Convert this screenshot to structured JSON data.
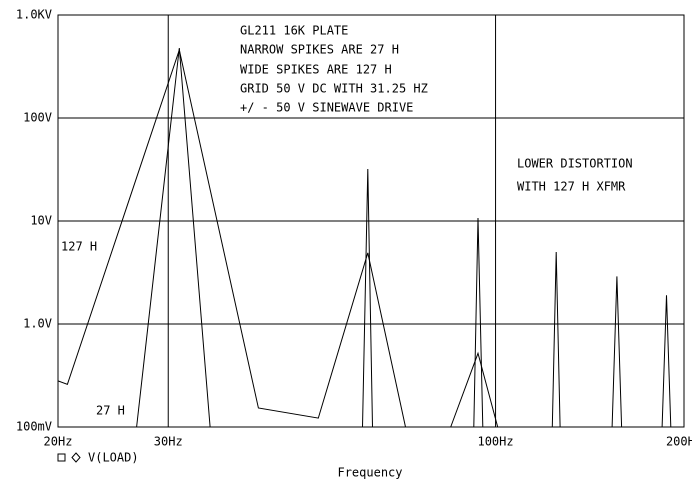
{
  "chart_data": {
    "type": "line",
    "xlabel": "Frequency",
    "legend_label": "V(LOAD)",
    "xscale": "log",
    "yscale": "log",
    "grid": true,
    "xlim": [
      20,
      200
    ],
    "ylim": [
      0.1,
      1000
    ],
    "xticks": [
      {
        "value": 20,
        "label": "20Hz"
      },
      {
        "value": 30,
        "label": "30Hz"
      },
      {
        "value": 100,
        "label": "100Hz"
      },
      {
        "value": 200,
        "label": "200Hz"
      }
    ],
    "yticks": [
      {
        "value": 0.1,
        "label": "100mV"
      },
      {
        "value": 1,
        "label": "1.0V"
      },
      {
        "value": 10,
        "label": "10V"
      },
      {
        "value": 100,
        "label": "100V"
      },
      {
        "value": 1000,
        "label": "1.0KV"
      }
    ],
    "annotations": [
      "GL211 16K PLATE",
      "NARROW SPIKES ARE 27 H",
      "WIDE SPIKES ARE 127 H",
      "GRID 50 V DC WITH 31.25 HZ",
      "+/ - 50 V SINEWAVE DRIVE"
    ],
    "note": [
      "LOWER DISTORTION",
      "WITH 127 H XFMR"
    ],
    "series": [
      {
        "name": "127 H",
        "color": "#000000",
        "x": [
          20,
          20.7,
          31.25,
          41.8,
          52.1,
          62.5,
          71.8,
          null,
          84.8,
          93.75,
          100.8
        ],
        "values": [
          0.28,
          0.26,
          457,
          0.153,
          0.122,
          4.9,
          0.1,
          null,
          0.1,
          0.52,
          0.1
        ]
      },
      {
        "name": "27 H",
        "color": "#000000",
        "x": [
          26.7,
          31.25,
          35.0,
          null,
          61.3,
          62.5,
          63.6,
          null,
          92.3,
          93.75,
          95.4,
          null,
          123.2,
          125,
          126.8,
          null,
          153.5,
          156.25,
          159,
          null,
          184.5,
          187.5,
          190.5
        ],
        "values": [
          0.1,
          478,
          0.1,
          null,
          0.1,
          32,
          0.1,
          null,
          0.1,
          10.7,
          0.1,
          null,
          0.1,
          5.0,
          0.1,
          null,
          0.1,
          2.9,
          0.1,
          null,
          0.1,
          1.9,
          0.1
        ]
      }
    ]
  }
}
